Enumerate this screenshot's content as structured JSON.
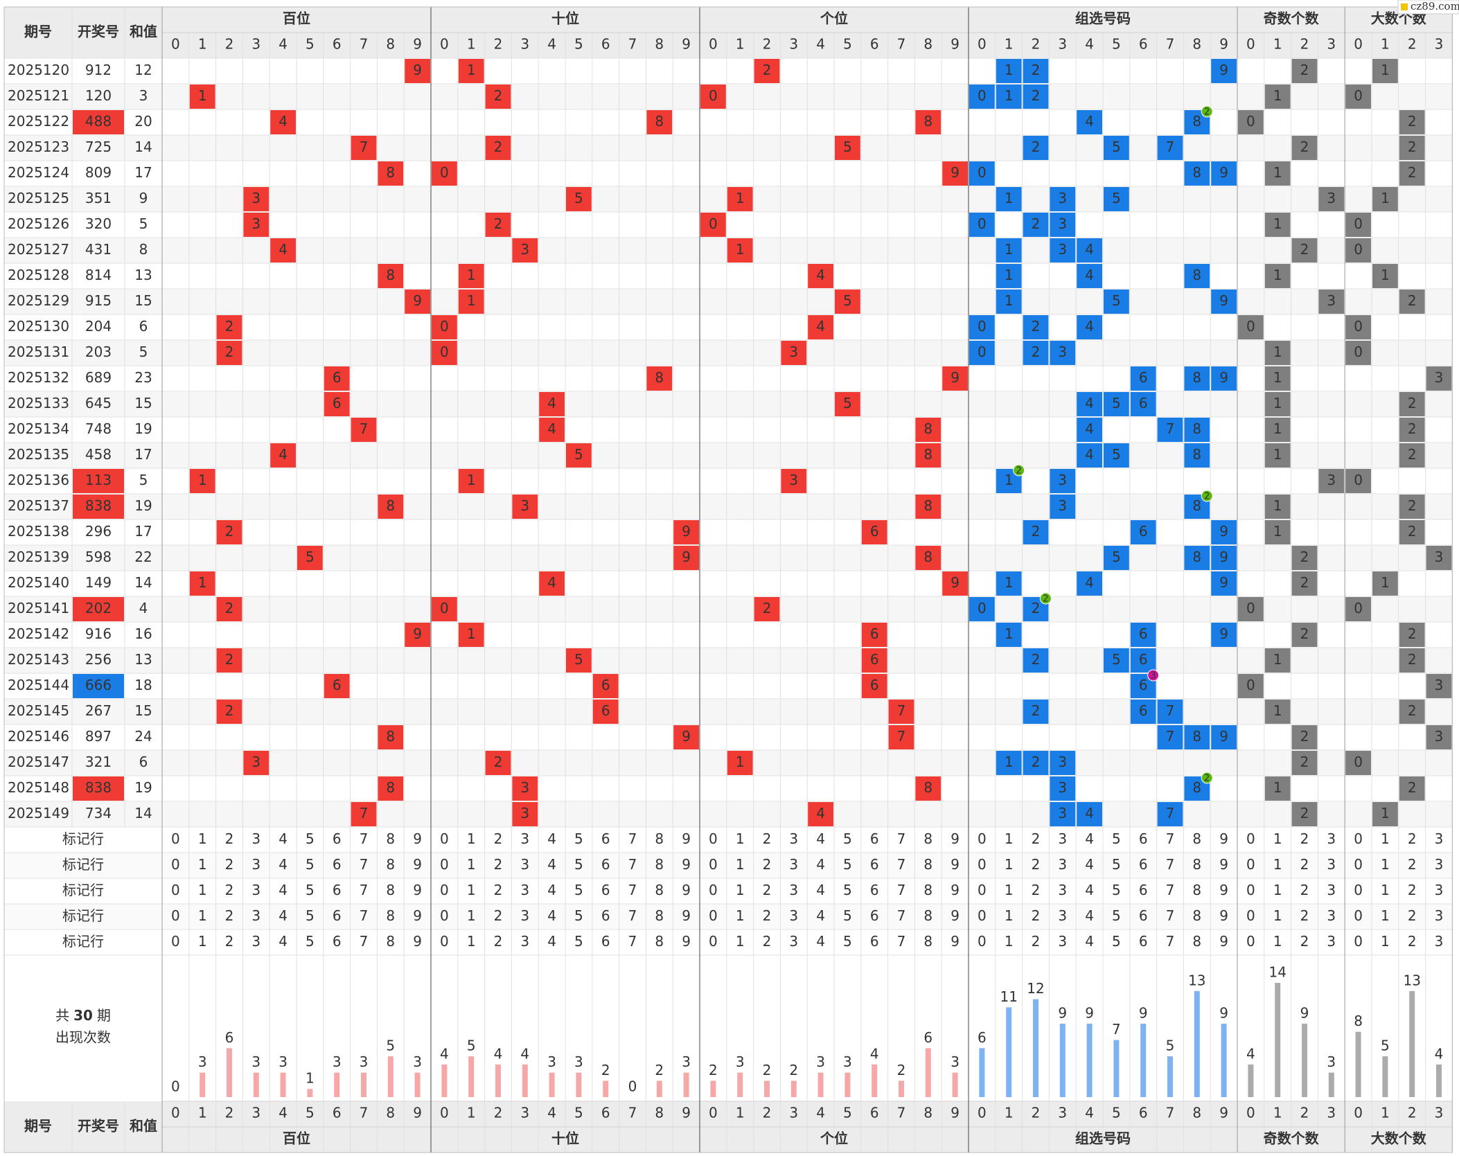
{
  "logo": "cz89.com",
  "header": {
    "period": "期号",
    "number": "开奖号",
    "sum": "和值",
    "groups": [
      "百位",
      "十位",
      "个位",
      "组选号码",
      "奇数个数",
      "大数个数"
    ],
    "digits": [
      0,
      1,
      2,
      3,
      4,
      5,
      6,
      7,
      8,
      9
    ]
  },
  "rows": [
    {
      "period": 2025120,
      "number": "912",
      "sum": 12
    },
    {
      "period": 2025121,
      "number": "120",
      "sum": 3
    },
    {
      "period": 2025122,
      "number": "488",
      "sum": 20,
      "repeat": 2
    },
    {
      "period": 2025123,
      "number": "725",
      "sum": 14
    },
    {
      "period": 2025124,
      "number": "809",
      "sum": 17
    },
    {
      "period": 2025125,
      "number": "351",
      "sum": 9
    },
    {
      "period": 2025126,
      "number": "320",
      "sum": 5
    },
    {
      "period": 2025127,
      "number": "431",
      "sum": 8
    },
    {
      "period": 2025128,
      "number": "814",
      "sum": 13
    },
    {
      "period": 2025129,
      "number": "915",
      "sum": 15
    },
    {
      "period": 2025130,
      "number": "204",
      "sum": 6
    },
    {
      "period": 2025131,
      "number": "203",
      "sum": 5
    },
    {
      "period": 2025132,
      "number": "689",
      "sum": 23
    },
    {
      "period": 2025133,
      "number": "645",
      "sum": 15
    },
    {
      "period": 2025134,
      "number": "748",
      "sum": 19
    },
    {
      "period": 2025135,
      "number": "458",
      "sum": 17
    },
    {
      "period": 2025136,
      "number": "113",
      "sum": 5,
      "repeat": 2
    },
    {
      "period": 2025137,
      "number": "838",
      "sum": 19,
      "repeat": 2
    },
    {
      "period": 2025138,
      "number": "296",
      "sum": 17
    },
    {
      "period": 2025139,
      "number": "598",
      "sum": 22
    },
    {
      "period": 2025140,
      "number": "149",
      "sum": 14
    },
    {
      "period": 2025141,
      "number": "202",
      "sum": 4,
      "repeat": 2
    },
    {
      "period": 2025142,
      "number": "916",
      "sum": 16
    },
    {
      "period": 2025143,
      "number": "256",
      "sum": 13
    },
    {
      "period": 2025144,
      "number": "666",
      "sum": 18,
      "repeat": 3
    },
    {
      "period": 2025145,
      "number": "267",
      "sum": 15
    },
    {
      "period": 2025146,
      "number": "897",
      "sum": 24
    },
    {
      "period": 2025147,
      "number": "321",
      "sum": 6
    },
    {
      "period": 2025148,
      "number": "838",
      "sum": 19,
      "repeat": 2
    },
    {
      "period": 2025149,
      "number": "734",
      "sum": 14
    }
  ],
  "marker_rows": [
    "标记行",
    "标记行",
    "标记行",
    "标记行",
    "标记行"
  ],
  "summary": {
    "prefix": "共",
    "periods": 30,
    "suffix": "期",
    "label": "出现次数"
  },
  "counts": [
    [
      0,
      3,
      6,
      3,
      3,
      1,
      3,
      3,
      5,
      3
    ],
    [
      4,
      5,
      4,
      4,
      3,
      3,
      2,
      0,
      2,
      3
    ],
    [
      2,
      3,
      2,
      2,
      3,
      3,
      4,
      2,
      6,
      3
    ],
    [
      6,
      11,
      12,
      9,
      9,
      7,
      9,
      5,
      13,
      9
    ],
    [
      4,
      14,
      9,
      3
    ],
    [
      8,
      5,
      13,
      4
    ]
  ]
}
